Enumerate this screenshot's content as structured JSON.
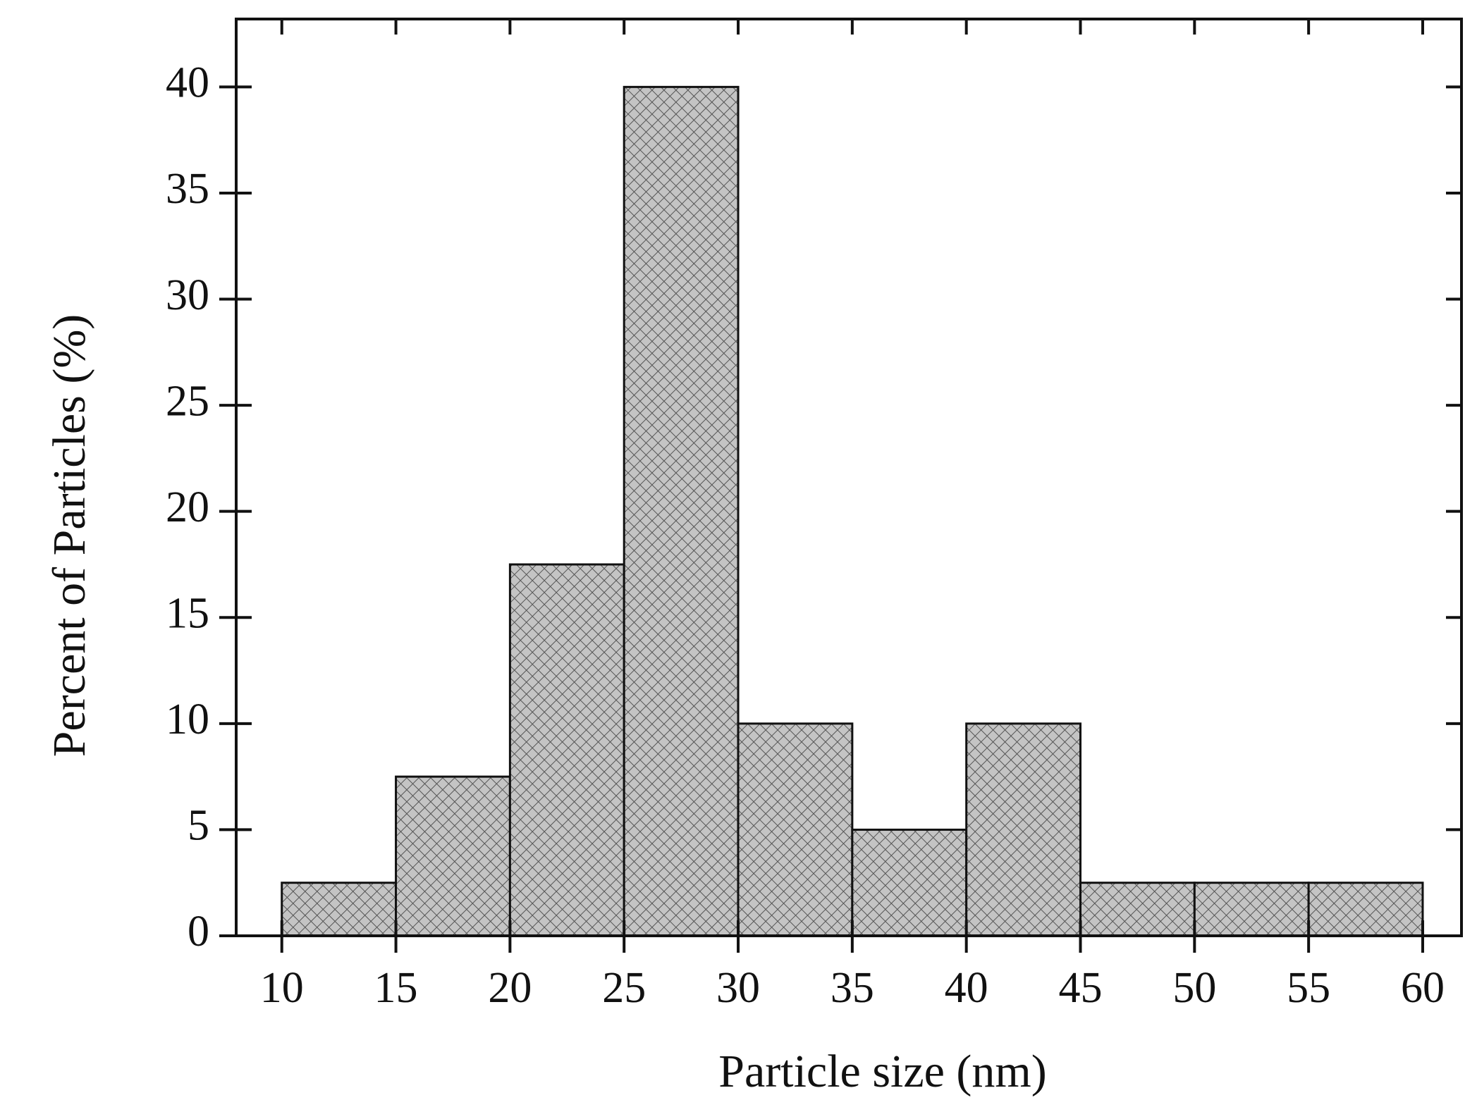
{
  "chart_data": {
    "type": "histogram",
    "x_label": "Particle size (nm)",
    "y_label": "Percent of Particles (%)",
    "bins": [
      10,
      15,
      20,
      25,
      30,
      35,
      40,
      45,
      50,
      55,
      60
    ],
    "values": [
      2.5,
      7.5,
      17.5,
      40,
      10,
      5,
      10,
      2.5,
      2.5,
      2.5
    ],
    "color": "#c4c4c4",
    "xlim": [
      8,
      61.7
    ],
    "xticks": [
      10,
      15,
      20,
      25,
      30,
      35,
      40,
      45,
      50,
      55,
      60
    ],
    "ylim": [
      0,
      43.2
    ],
    "yticks": [
      0,
      5,
      10,
      15,
      20,
      25,
      30,
      35,
      40
    ],
    "grid": false
  }
}
